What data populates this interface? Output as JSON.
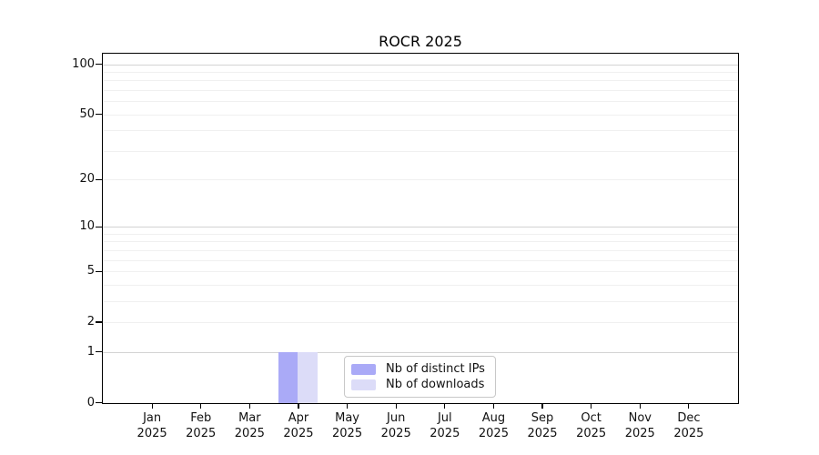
{
  "chart_data": {
    "type": "bar",
    "title": "ROCR 2025",
    "categories": [
      "Jan",
      "Feb",
      "Mar",
      "Apr",
      "May",
      "Jun",
      "Jul",
      "Aug",
      "Sep",
      "Oct",
      "Nov",
      "Dec"
    ],
    "x_tick_year": "2025",
    "series": [
      {
        "name": "Nb of distinct IPs",
        "color": "#aaaaf7",
        "values": [
          0,
          0,
          0,
          1,
          0,
          0,
          0,
          0,
          0,
          0,
          0,
          0
        ]
      },
      {
        "name": "Nb of downloads",
        "color": "#dcdcf8",
        "values": [
          0,
          0,
          0,
          1,
          0,
          0,
          0,
          0,
          0,
          0,
          0,
          0
        ]
      }
    ],
    "y_axis": {
      "scale": "log1p",
      "ticks": [
        0,
        1,
        2,
        5,
        10,
        20,
        50,
        100
      ],
      "major_gridlines": [
        1,
        10,
        100
      ],
      "minor_gridlines": [
        2,
        3,
        4,
        5,
        6,
        7,
        8,
        9,
        20,
        30,
        40,
        50,
        60,
        70,
        80,
        90
      ],
      "ylim": [
        0,
        115
      ]
    },
    "legend": {
      "position": "bottom-center"
    },
    "grid": true,
    "colors": {
      "major_grid": "#d3d3d3",
      "minor_grid": "#f0f0f0",
      "spine": "#000000",
      "text": "#111111"
    }
  }
}
